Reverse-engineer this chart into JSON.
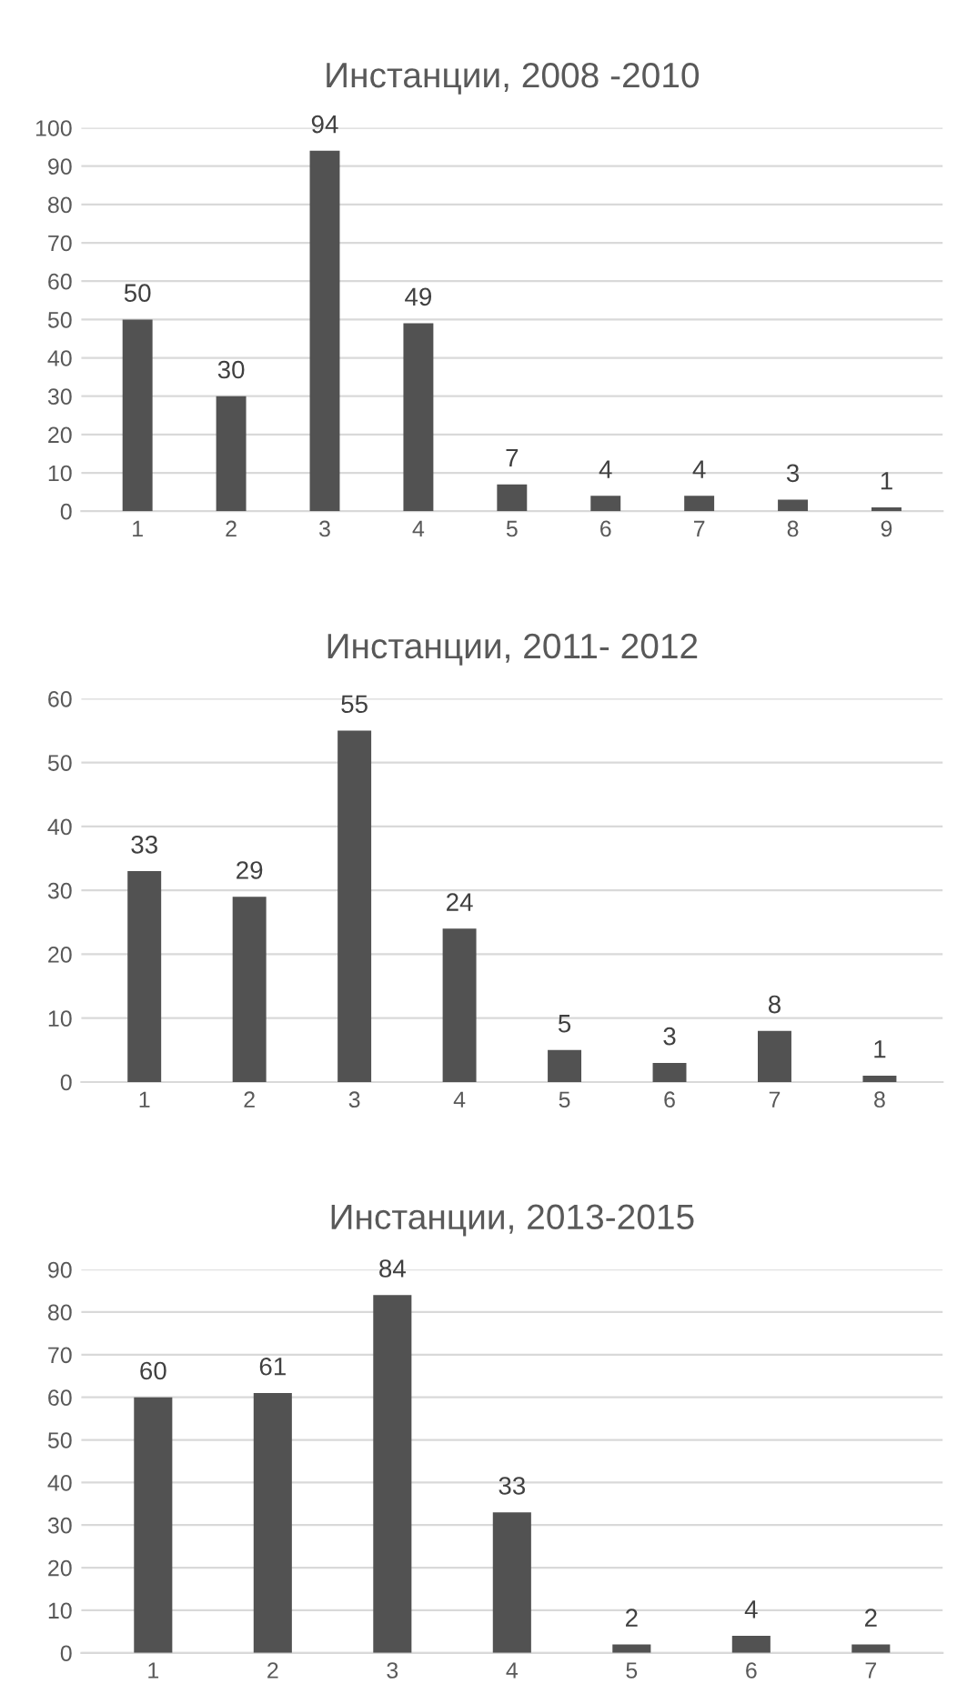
{
  "chart_data": [
    {
      "type": "bar",
      "title": "Инстанции, 2008 -2010",
      "categories": [
        "1",
        "2",
        "3",
        "4",
        "5",
        "6",
        "7",
        "8",
        "9"
      ],
      "values": [
        50,
        30,
        94,
        49,
        7,
        4,
        4,
        3,
        1
      ],
      "color": "#525252",
      "ylim": [
        0,
        100
      ],
      "yticks": [
        0,
        10,
        20,
        30,
        40,
        50,
        60,
        70,
        80,
        90,
        100
      ],
      "grid": "y",
      "data_labels": true
    },
    {
      "type": "bar",
      "title": "Инстанции, 2011- 2012",
      "categories": [
        "1",
        "2",
        "3",
        "4",
        "5",
        "6",
        "7",
        "8"
      ],
      "values": [
        33,
        29,
        55,
        24,
        5,
        3,
        8,
        1
      ],
      "color": "#525252",
      "ylim": [
        0,
        60
      ],
      "yticks": [
        0,
        10,
        20,
        30,
        40,
        50,
        60
      ],
      "grid": "y",
      "data_labels": true
    },
    {
      "type": "bar",
      "title": "Инстанции, 2013-2015",
      "categories": [
        "1",
        "2",
        "3",
        "4",
        "5",
        "6",
        "7"
      ],
      "values": [
        60,
        61,
        84,
        33,
        2,
        4,
        2
      ],
      "color": "#525252",
      "ylim": [
        0,
        90
      ],
      "yticks": [
        0,
        10,
        20,
        30,
        40,
        50,
        60,
        70,
        80,
        90
      ],
      "grid": "y",
      "data_labels": true
    }
  ]
}
